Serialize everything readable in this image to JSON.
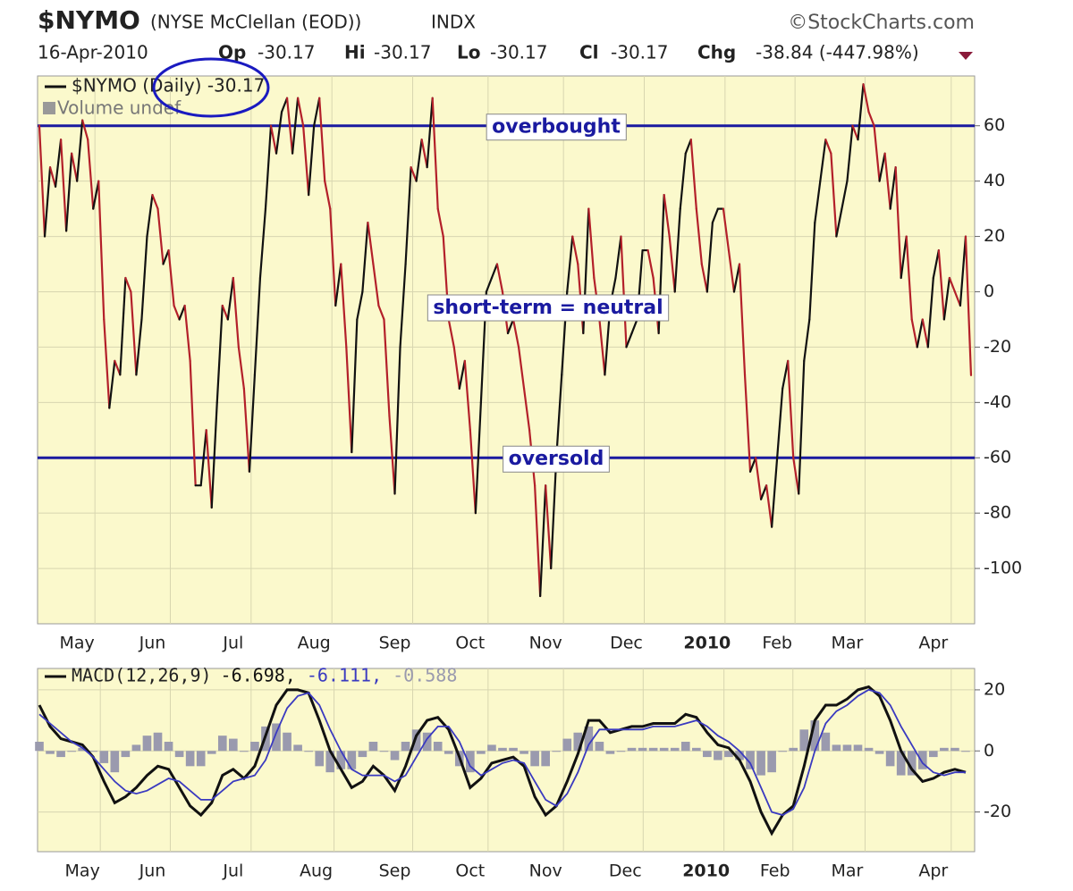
{
  "header": {
    "symbol": "$NYMO",
    "name": "(NYSE McClellan (EOD))",
    "exchange": "INDX",
    "source": "©StockCharts.com",
    "date": "16-Apr-2010",
    "open_label": "Op",
    "open": "-30.17",
    "high_label": "Hi",
    "high": "-30.17",
    "low_label": "Lo",
    "low": "-30.17",
    "close_label": "Cl",
    "close": "-30.17",
    "change_label": "Chg",
    "change": "-38.84 (-447.98%)"
  },
  "chart_data": [
    {
      "type": "line",
      "legend": "$NYMO (Daily) -30.17",
      "volume": "Volume undef",
      "up_color": "#111111",
      "down_color": "#b3202a",
      "values": [
        60,
        20,
        45,
        38,
        55,
        22,
        50,
        40,
        62,
        55,
        30,
        40,
        -10,
        -42,
        -25,
        -30,
        5,
        0,
        -30,
        -10,
        20,
        35,
        30,
        10,
        15,
        -5,
        -10,
        -5,
        -25,
        -70,
        -70,
        -50,
        -78,
        -40,
        -5,
        -10,
        5,
        -20,
        -35,
        -65,
        -30,
        5,
        30,
        60,
        50,
        65,
        70,
        50,
        70,
        60,
        35,
        60,
        70,
        40,
        30,
        -5,
        10,
        -20,
        -58,
        -10,
        0,
        25,
        10,
        -5,
        -10,
        -45,
        -73,
        -20,
        10,
        45,
        40,
        55,
        45,
        70,
        30,
        20,
        -10,
        -20,
        -35,
        -25,
        -50,
        -80,
        -40,
        0,
        5,
        10,
        0,
        -15,
        -10,
        -20,
        -35,
        -50,
        -70,
        -110,
        -70,
        -100,
        -60,
        -30,
        0,
        20,
        10,
        -15,
        30,
        5,
        -10,
        -30,
        -5,
        5,
        20,
        -20,
        -15,
        -10,
        15,
        15,
        5,
        -15,
        35,
        20,
        0,
        30,
        50,
        55,
        30,
        10,
        0,
        25,
        30,
        30,
        15,
        0,
        10,
        -30,
        -65,
        -60,
        -75,
        -70,
        -85,
        -60,
        -35,
        -25,
        -60,
        -73,
        -25,
        -10,
        25,
        40,
        55,
        50,
        20,
        30,
        40,
        60,
        55,
        75,
        65,
        60,
        40,
        50,
        30,
        45,
        5,
        20,
        -10,
        -20,
        -10,
        -20,
        5,
        15,
        -10,
        5,
        0,
        -5,
        20,
        -30.17
      ],
      "ylim": [
        -120,
        78
      ],
      "yticks": [
        -100,
        -80,
        -60,
        -40,
        -20,
        0,
        20,
        40,
        60
      ],
      "grid": true,
      "xticks": [
        {
          "value": 7,
          "label": "May"
        },
        {
          "value": 21,
          "label": "Jun"
        },
        {
          "value": 36,
          "label": "Jul"
        },
        {
          "value": 51,
          "label": "Aug"
        },
        {
          "value": 66,
          "label": "Sep"
        },
        {
          "value": 80,
          "label": "Oct"
        },
        {
          "value": 94,
          "label": "Nov"
        },
        {
          "value": 109,
          "label": "Dec"
        },
        {
          "value": 124,
          "label": "2010"
        },
        {
          "value": 137,
          "label": "Feb"
        },
        {
          "value": 150,
          "label": "Mar"
        },
        {
          "value": 166,
          "label": "Apr"
        }
      ],
      "reference_lines": [
        {
          "value": 60,
          "label": "overbought"
        },
        {
          "value": -60,
          "label": "oversold"
        }
      ],
      "reference_color": "#1a1aa0",
      "annotation": "short-term = neutral"
    },
    {
      "type": "macd",
      "legend": "MACD(12,26,9)",
      "series": [
        {
          "name": "-6.698,",
          "color": "#111111",
          "kind": "line",
          "values": [
            15,
            8,
            4,
            3,
            2,
            -2,
            -10,
            -17,
            -15,
            -12,
            -8,
            -5,
            -6,
            -12,
            -18,
            -21,
            -17,
            -8,
            -6,
            -9,
            -5,
            5,
            15,
            20,
            20,
            19,
            10,
            0,
            -6,
            -12,
            -10,
            -5,
            -8,
            -13,
            -5,
            5,
            10,
            11,
            7,
            -2,
            -12,
            -9,
            -4,
            -3,
            -2,
            -5,
            -15,
            -21,
            -18,
            -10,
            -1,
            10,
            10,
            6,
            7,
            8,
            8,
            9,
            9,
            9,
            12,
            11,
            6,
            2,
            1,
            -3,
            -10,
            -20,
            -27,
            -21,
            -18,
            -5,
            10,
            15,
            15,
            17,
            20,
            21,
            18,
            10,
            0,
            -6,
            -10,
            -9,
            -7,
            -6,
            -7
          ]
        },
        {
          "name": "-6.111,",
          "color": "#3a3ac0",
          "kind": "line",
          "values": [
            12,
            9,
            6,
            3,
            1,
            -2,
            -6,
            -10,
            -13,
            -14,
            -13,
            -11,
            -9,
            -10,
            -13,
            -16,
            -16,
            -13,
            -10,
            -9,
            -8,
            -3,
            6,
            14,
            18,
            19,
            15,
            7,
            0,
            -6,
            -8,
            -8,
            -8,
            -10,
            -8,
            -2,
            4,
            8,
            8,
            3,
            -5,
            -8,
            -6,
            -4,
            -3,
            -4,
            -10,
            -16,
            -18,
            -14,
            -7,
            2,
            7,
            7,
            7,
            7,
            7,
            8,
            8,
            8,
            9,
            10,
            8,
            5,
            3,
            0,
            -4,
            -12,
            -20,
            -21,
            -19,
            -12,
            0,
            9,
            13,
            15,
            18,
            20,
            19,
            15,
            8,
            2,
            -4,
            -7,
            -8,
            -7,
            -7
          ]
        },
        {
          "name": "-0.588",
          "color": "#9a9aae",
          "kind": "histogram",
          "values": [
            3,
            -1,
            -2,
            0,
            1,
            0,
            -4,
            -7,
            -2,
            2,
            5,
            6,
            3,
            -2,
            -5,
            -5,
            -1,
            5,
            4,
            0,
            3,
            8,
            9,
            6,
            2,
            0,
            -5,
            -7,
            -6,
            -6,
            -2,
            3,
            0,
            -3,
            3,
            7,
            6,
            3,
            -1,
            -5,
            -7,
            -1,
            2,
            1,
            1,
            -1,
            -5,
            -5,
            0,
            4,
            6,
            8,
            3,
            -1,
            0,
            1,
            1,
            1,
            1,
            1,
            3,
            1,
            -2,
            -3,
            -2,
            -3,
            -6,
            -8,
            -7,
            0,
            1,
            7,
            10,
            6,
            2,
            2,
            2,
            1,
            -1,
            -5,
            -8,
            -8,
            -6,
            -2,
            1,
            1,
            0
          ]
        }
      ],
      "ylim": [
        -33,
        27
      ],
      "yticks": [
        -20,
        0,
        20
      ],
      "grid": true,
      "xticks": [
        {
          "value": 4,
          "label": "May"
        },
        {
          "value": 10.5,
          "label": "Jun"
        },
        {
          "value": 18,
          "label": "Jul"
        },
        {
          "value": 25.7,
          "label": "Aug"
        },
        {
          "value": 33,
          "label": "Sep"
        },
        {
          "value": 40,
          "label": "Oct"
        },
        {
          "value": 47,
          "label": "Nov"
        },
        {
          "value": 54.4,
          "label": "Dec"
        },
        {
          "value": 61.9,
          "label": "2010"
        },
        {
          "value": 68.3,
          "label": "Feb"
        },
        {
          "value": 75,
          "label": "Mar"
        },
        {
          "value": 83,
          "label": "Apr"
        }
      ]
    }
  ]
}
